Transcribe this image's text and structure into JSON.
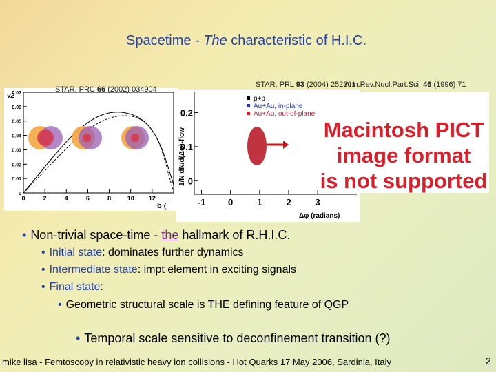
{
  "title": {
    "parts": [
      "Spacetime - ",
      "The",
      " characteristic of H.I.C."
    ]
  },
  "citations": [
    {
      "parts": [
        "STAR, PRC ",
        "66",
        " (2002) 034904"
      ]
    },
    {
      "parts": [
        "STAR, PRL ",
        "93",
        " (2004) 252301"
      ]
    },
    {
      "parts": [
        "Ann.Rev.Nucl.Part.Sci. ",
        "46",
        " (1996) 71"
      ]
    }
  ],
  "figure_left": {
    "y_label": "v2",
    "x_label": "b (",
    "xlim": [
      0,
      14
    ],
    "ylim": [
      0,
      0.07
    ],
    "xticks": [
      0,
      2,
      4,
      6,
      8,
      10,
      12
    ],
    "yticks": [
      0,
      0.01,
      0.02,
      0.03,
      0.04,
      0.05,
      0.06,
      0.07
    ]
  },
  "figure_middle": {
    "y_label": "1/N dN/d(Δφ)-flow",
    "x_label": "Δφ (radians)",
    "legend": [
      "p+p",
      "Au+Au, in-plane",
      "Au+Au, out-of-plane"
    ],
    "xlim": [
      -1.25,
      4.35
    ],
    "ylim": [
      -0.04,
      0.26
    ],
    "xticks": [
      -1,
      0,
      1,
      2,
      3
    ],
    "yticks": [
      0,
      0.1,
      0.2
    ]
  },
  "placeholder": {
    "lines": [
      "Macintosh PICT",
      "image format",
      "is not supported"
    ]
  },
  "bullets": {
    "main": {
      "parts": [
        "Non-trivial space-time - ",
        "the",
        " hallmark of R.H.I.C."
      ]
    },
    "sub": [
      {
        "term": "Initial state",
        "text": ": dominates further dynamics"
      },
      {
        "term": "Intermediate state",
        "text": ": impt element in exciting signals"
      },
      {
        "term": "Final state",
        "text": ":"
      }
    ],
    "subsub": "Geometric structural scale is THE defining feature of QGP",
    "last": "Temporal scale sensitive to deconfinement transition (?)"
  },
  "footer": "mike lisa - Femtoscopy in relativistic heavy ion collisions - Hot Quarks 17 May 2006, Sardinia, Italy",
  "page_number": "2"
}
